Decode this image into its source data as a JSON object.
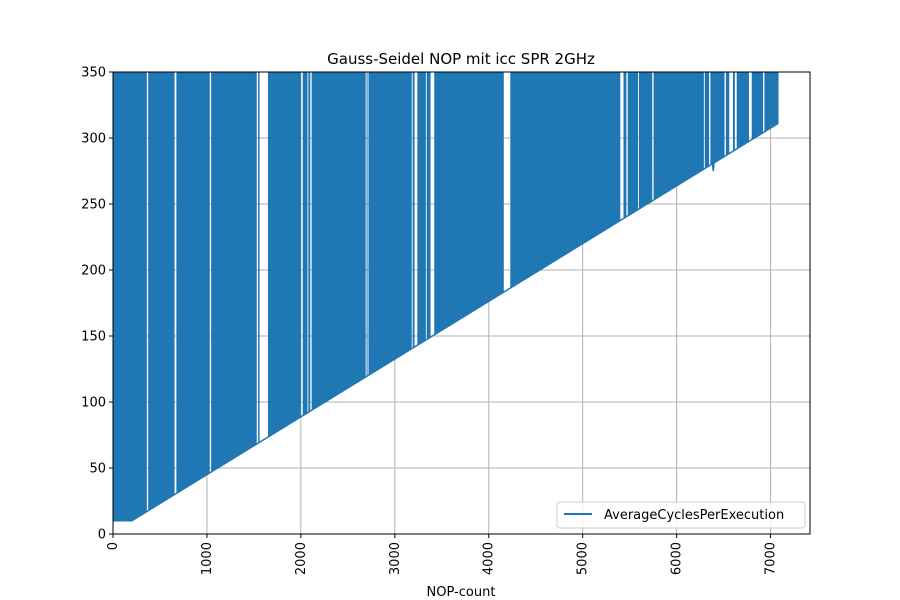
{
  "chart_data": {
    "type": "line",
    "title": "Gauss-Seidel NOP mit icc SPR 2GHz",
    "xlabel": "NOP-count",
    "ylabel": "",
    "xlim": [
      0,
      7420
    ],
    "ylim": [
      0,
      350
    ],
    "xticks": [
      0,
      1000,
      2000,
      3000,
      4000,
      5000,
      6000,
      7000
    ],
    "yticks": [
      0,
      50,
      100,
      150,
      200,
      250,
      300,
      350
    ],
    "grid": true,
    "legend_position": "lower-right",
    "series": [
      {
        "name": "AverageCyclesPerExecution",
        "color": "#1f77b4",
        "x_range": [
          0,
          7080
        ],
        "baseline": [
          [
            0,
            10
          ],
          [
            200,
            10
          ],
          [
            7080,
            311
          ]
        ],
        "dip_points": [
          [
            6390,
            275
          ]
        ],
        "spikes_to": 350,
        "spike_gaps_x": [
          [
            360,
            375
          ],
          [
            655,
            675
          ],
          [
            1030,
            1045
          ],
          [
            1530,
            1545
          ],
          [
            1560,
            1650
          ],
          [
            2000,
            2020
          ],
          [
            2070,
            2080
          ],
          [
            2100,
            2115
          ],
          [
            2690,
            2700
          ],
          [
            2710,
            2720
          ],
          [
            3180,
            3190
          ],
          [
            3210,
            3240
          ],
          [
            3330,
            3340
          ],
          [
            3380,
            3420
          ],
          [
            4160,
            4230
          ],
          [
            5400,
            5435
          ],
          [
            5465,
            5480
          ],
          [
            5590,
            5600
          ],
          [
            5740,
            5755
          ],
          [
            6290,
            6300
          ],
          [
            6345,
            6360
          ],
          [
            6510,
            6525
          ],
          [
            6560,
            6600
          ],
          [
            6620,
            6640
          ],
          [
            6770,
            6800
          ],
          [
            6920,
            6935
          ]
        ]
      }
    ]
  }
}
